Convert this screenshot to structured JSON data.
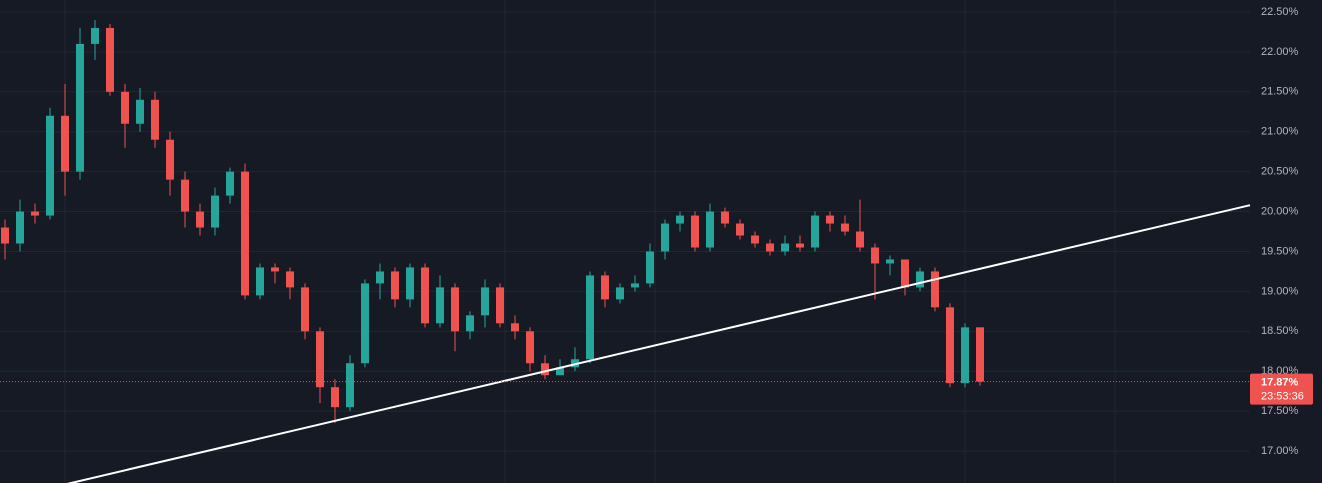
{
  "chart_data": {
    "type": "candlestick",
    "open": [
      19.8,
      19.6,
      20.0,
      19.95,
      21.2,
      20.5,
      22.1,
      22.3,
      21.5,
      21.1,
      21.4,
      20.9,
      20.4,
      20.0,
      19.8,
      20.2,
      20.5,
      18.95,
      19.3,
      19.25,
      19.05,
      18.5,
      17.8,
      17.55,
      18.1,
      19.1,
      19.25,
      18.9,
      19.3,
      18.6,
      19.05,
      18.5,
      18.7,
      19.05,
      18.6,
      18.5,
      18.1,
      17.95,
      18.05,
      18.15,
      19.2,
      18.9,
      19.05,
      19.1,
      19.5,
      19.85,
      19.95,
      19.55,
      20.0,
      19.85,
      19.7,
      19.6,
      19.5,
      19.6,
      19.55,
      19.95,
      19.85,
      19.75,
      19.55,
      19.35,
      19.4,
      19.05,
      19.25,
      18.8,
      17.85,
      18.55
    ],
    "high": [
      19.9,
      20.15,
      20.1,
      21.3,
      21.6,
      22.3,
      22.4,
      22.35,
      21.6,
      21.55,
      21.5,
      21.0,
      20.5,
      20.1,
      20.3,
      20.55,
      20.6,
      19.35,
      19.35,
      19.3,
      19.1,
      18.55,
      17.9,
      18.2,
      19.15,
      19.35,
      19.3,
      19.35,
      19.35,
      19.2,
      19.1,
      18.75,
      19.15,
      19.1,
      18.7,
      18.55,
      18.2,
      18.15,
      18.3,
      19.25,
      19.25,
      19.1,
      19.2,
      19.6,
      19.9,
      20.0,
      20.0,
      20.1,
      20.05,
      19.9,
      19.75,
      19.65,
      19.7,
      19.7,
      20.0,
      20.0,
      19.95,
      20.15,
      19.6,
      19.45,
      19.4,
      19.3,
      19.3,
      18.85,
      18.6,
      18.55
    ],
    "low": [
      19.4,
      19.5,
      19.85,
      19.9,
      20.2,
      20.4,
      21.9,
      21.45,
      20.8,
      21.0,
      20.8,
      20.2,
      19.8,
      19.7,
      19.7,
      20.1,
      18.9,
      18.9,
      19.1,
      18.9,
      18.4,
      17.6,
      17.35,
      17.5,
      18.05,
      18.9,
      18.8,
      18.8,
      18.55,
      18.55,
      18.25,
      18.4,
      18.55,
      18.55,
      18.4,
      18.0,
      17.9,
      17.95,
      18.0,
      18.1,
      18.8,
      18.85,
      19.0,
      19.05,
      19.4,
      19.75,
      19.5,
      19.5,
      19.8,
      19.65,
      19.55,
      19.45,
      19.45,
      19.5,
      19.5,
      19.75,
      19.7,
      19.5,
      18.9,
      19.2,
      18.95,
      19.0,
      18.75,
      17.8,
      17.8,
      17.82
    ],
    "close": [
      19.6,
      20.0,
      19.95,
      21.2,
      20.5,
      22.1,
      22.3,
      21.5,
      21.1,
      21.4,
      20.9,
      20.4,
      20.0,
      19.8,
      20.2,
      20.5,
      18.95,
      19.3,
      19.25,
      19.05,
      18.5,
      17.8,
      17.55,
      18.1,
      19.1,
      19.25,
      18.9,
      19.3,
      18.6,
      19.05,
      18.5,
      18.7,
      19.05,
      18.6,
      18.5,
      18.1,
      17.95,
      18.05,
      18.15,
      19.2,
      18.9,
      19.05,
      19.1,
      19.5,
      19.85,
      19.95,
      19.55,
      20.0,
      19.85,
      19.7,
      19.6,
      19.5,
      19.6,
      19.55,
      19.95,
      19.85,
      19.75,
      19.55,
      19.35,
      19.4,
      19.05,
      19.25,
      18.8,
      17.85,
      18.55,
      17.87
    ],
    "up_color": "#26a69a",
    "down_color": "#ef5350",
    "ylim": [
      16.6,
      22.65
    ],
    "yticks": [
      {
        "value": 17.0,
        "label": "17.00%"
      },
      {
        "value": 17.5,
        "label": "17.50%"
      },
      {
        "value": 18.0,
        "label": "18.00%"
      },
      {
        "value": 18.5,
        "label": "18.50%"
      },
      {
        "value": 19.0,
        "label": "19.00%"
      },
      {
        "value": 19.5,
        "label": "19.50%"
      },
      {
        "value": 20.0,
        "label": "20.00%"
      },
      {
        "value": 20.5,
        "label": "20.50%"
      },
      {
        "value": 21.0,
        "label": "21.00%"
      },
      {
        "value": 21.5,
        "label": "21.50%"
      },
      {
        "value": 22.0,
        "label": "22.00%"
      },
      {
        "value": 22.5,
        "label": "22.50%"
      }
    ],
    "grid": true,
    "last": {
      "value": 17.87,
      "label": "17.87%"
    },
    "countdown": "23:53:36",
    "trendline": [
      16.39,
      20.08
    ]
  }
}
